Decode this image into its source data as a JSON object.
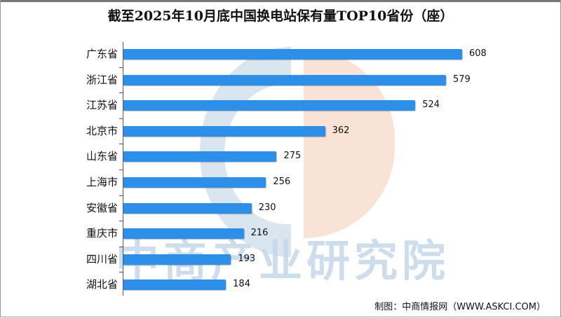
{
  "title": "截至2025年10月底中国换电站保有量TOP10省份（座）",
  "watermark": "中商产业研究院",
  "source": "制图：中商情报网（WWW.ASKCI.COM）",
  "colors": {
    "bar": "#2e8fe8",
    "watermark_blue": "#c9dcea",
    "watermark_orange": "#f6d9c8"
  },
  "chart_data": {
    "type": "bar",
    "orientation": "horizontal",
    "title": "截至2025年10月底中国换电站保有量TOP10省份（座）",
    "xlabel": "",
    "ylabel": "",
    "unit": "座",
    "categories": [
      "广东省",
      "浙江省",
      "江苏省",
      "北京市",
      "山东省",
      "上海市",
      "安徽省",
      "重庆市",
      "四川省",
      "湖北省"
    ],
    "values": [
      608,
      579,
      524,
      362,
      275,
      256,
      230,
      216,
      193,
      184
    ],
    "grid": false,
    "legend": null,
    "data_labels": true
  },
  "rows": [
    {
      "label": "广东省",
      "value": "608"
    },
    {
      "label": "浙江省",
      "value": "579"
    },
    {
      "label": "江苏省",
      "value": "524"
    },
    {
      "label": "北京市",
      "value": "362"
    },
    {
      "label": "山东省",
      "value": "275"
    },
    {
      "label": "上海市",
      "value": "256"
    },
    {
      "label": "安徽省",
      "value": "230"
    },
    {
      "label": "重庆市",
      "value": "216"
    },
    {
      "label": "四川省",
      "value": "193"
    },
    {
      "label": "湖北省",
      "value": "184"
    }
  ]
}
